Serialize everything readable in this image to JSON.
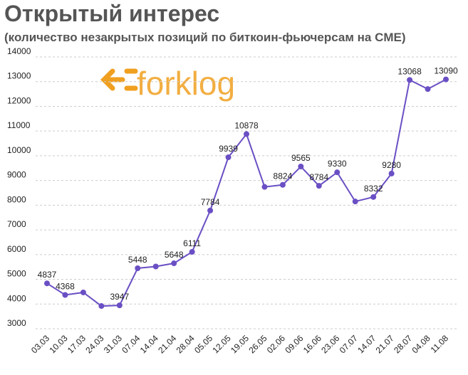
{
  "chart_data": {
    "type": "line",
    "title": "Открытый интерес",
    "subtitle": "(количество незакрытых позиций по биткоин-фьючерсам на CME)",
    "logo": "forklog",
    "categories": [
      "03.03",
      "10.03",
      "17.03",
      "24.03",
      "31.03",
      "07.04",
      "14.04",
      "21.04",
      "28.04",
      "05.05",
      "12.05",
      "19.05",
      "26.05",
      "02.06",
      "09.06",
      "16.06",
      "23.06",
      "07.07",
      "14.07",
      "21.07",
      "28.07",
      "04.08",
      "11.08"
    ],
    "series": [
      {
        "name": "Открытый интерес",
        "color": "#6a4fc4",
        "values": [
          4837,
          4368,
          4470,
          3920,
          3947,
          5448,
          5520,
          5648,
          6111,
          7784,
          9939,
          10878,
          8740,
          8824,
          9565,
          8784,
          9330,
          8150,
          8332,
          9280,
          13068,
          12700,
          13090
        ],
        "value_labels": [
          "4837",
          "4368",
          null,
          null,
          "3947",
          "5448",
          null,
          "5648",
          "6111",
          "7784",
          "9939",
          "10878",
          null,
          "8824",
          "9565",
          "8784",
          "9330",
          null,
          "8332",
          "9280",
          "13068",
          null,
          "13090"
        ]
      }
    ],
    "ylim": [
      3000,
      14000
    ],
    "yticks": [
      3000,
      4000,
      5000,
      6000,
      7000,
      8000,
      9000,
      10000,
      11000,
      12000,
      13000,
      14000
    ],
    "grid": true
  }
}
